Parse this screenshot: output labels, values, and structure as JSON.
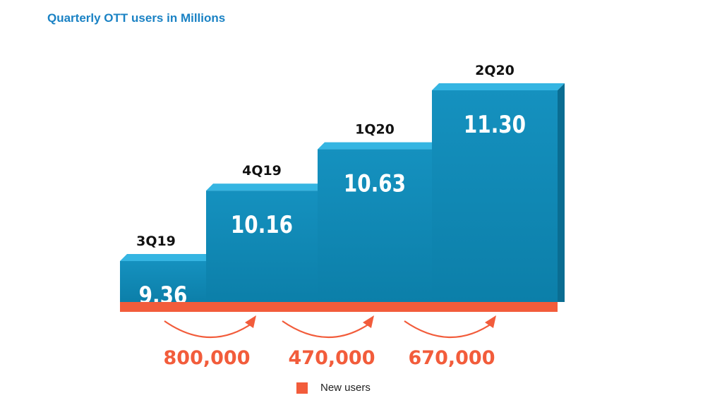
{
  "chart_data": {
    "type": "bar",
    "title": "Quarterly OTT users in Millions",
    "categories": [
      "3Q19",
      "4Q19",
      "1Q20",
      "2Q20"
    ],
    "values": [
      9.36,
      10.16,
      10.63,
      11.3
    ],
    "value_labels": [
      "9.36",
      "10.16",
      "10.63",
      "11.30"
    ],
    "increments": [
      {
        "from": "3Q19",
        "to": "4Q19",
        "label": "800,000"
      },
      {
        "from": "4Q19",
        "to": "1Q20",
        "label": "470,000"
      },
      {
        "from": "1Q20",
        "to": "2Q20",
        "label": "670,000"
      }
    ],
    "legend": [
      {
        "label": "New users",
        "color": "#f25c3b"
      }
    ],
    "bar_color": "#0f86b3",
    "accent_color": "#f25c3b",
    "title_color": "#1a82c4"
  }
}
